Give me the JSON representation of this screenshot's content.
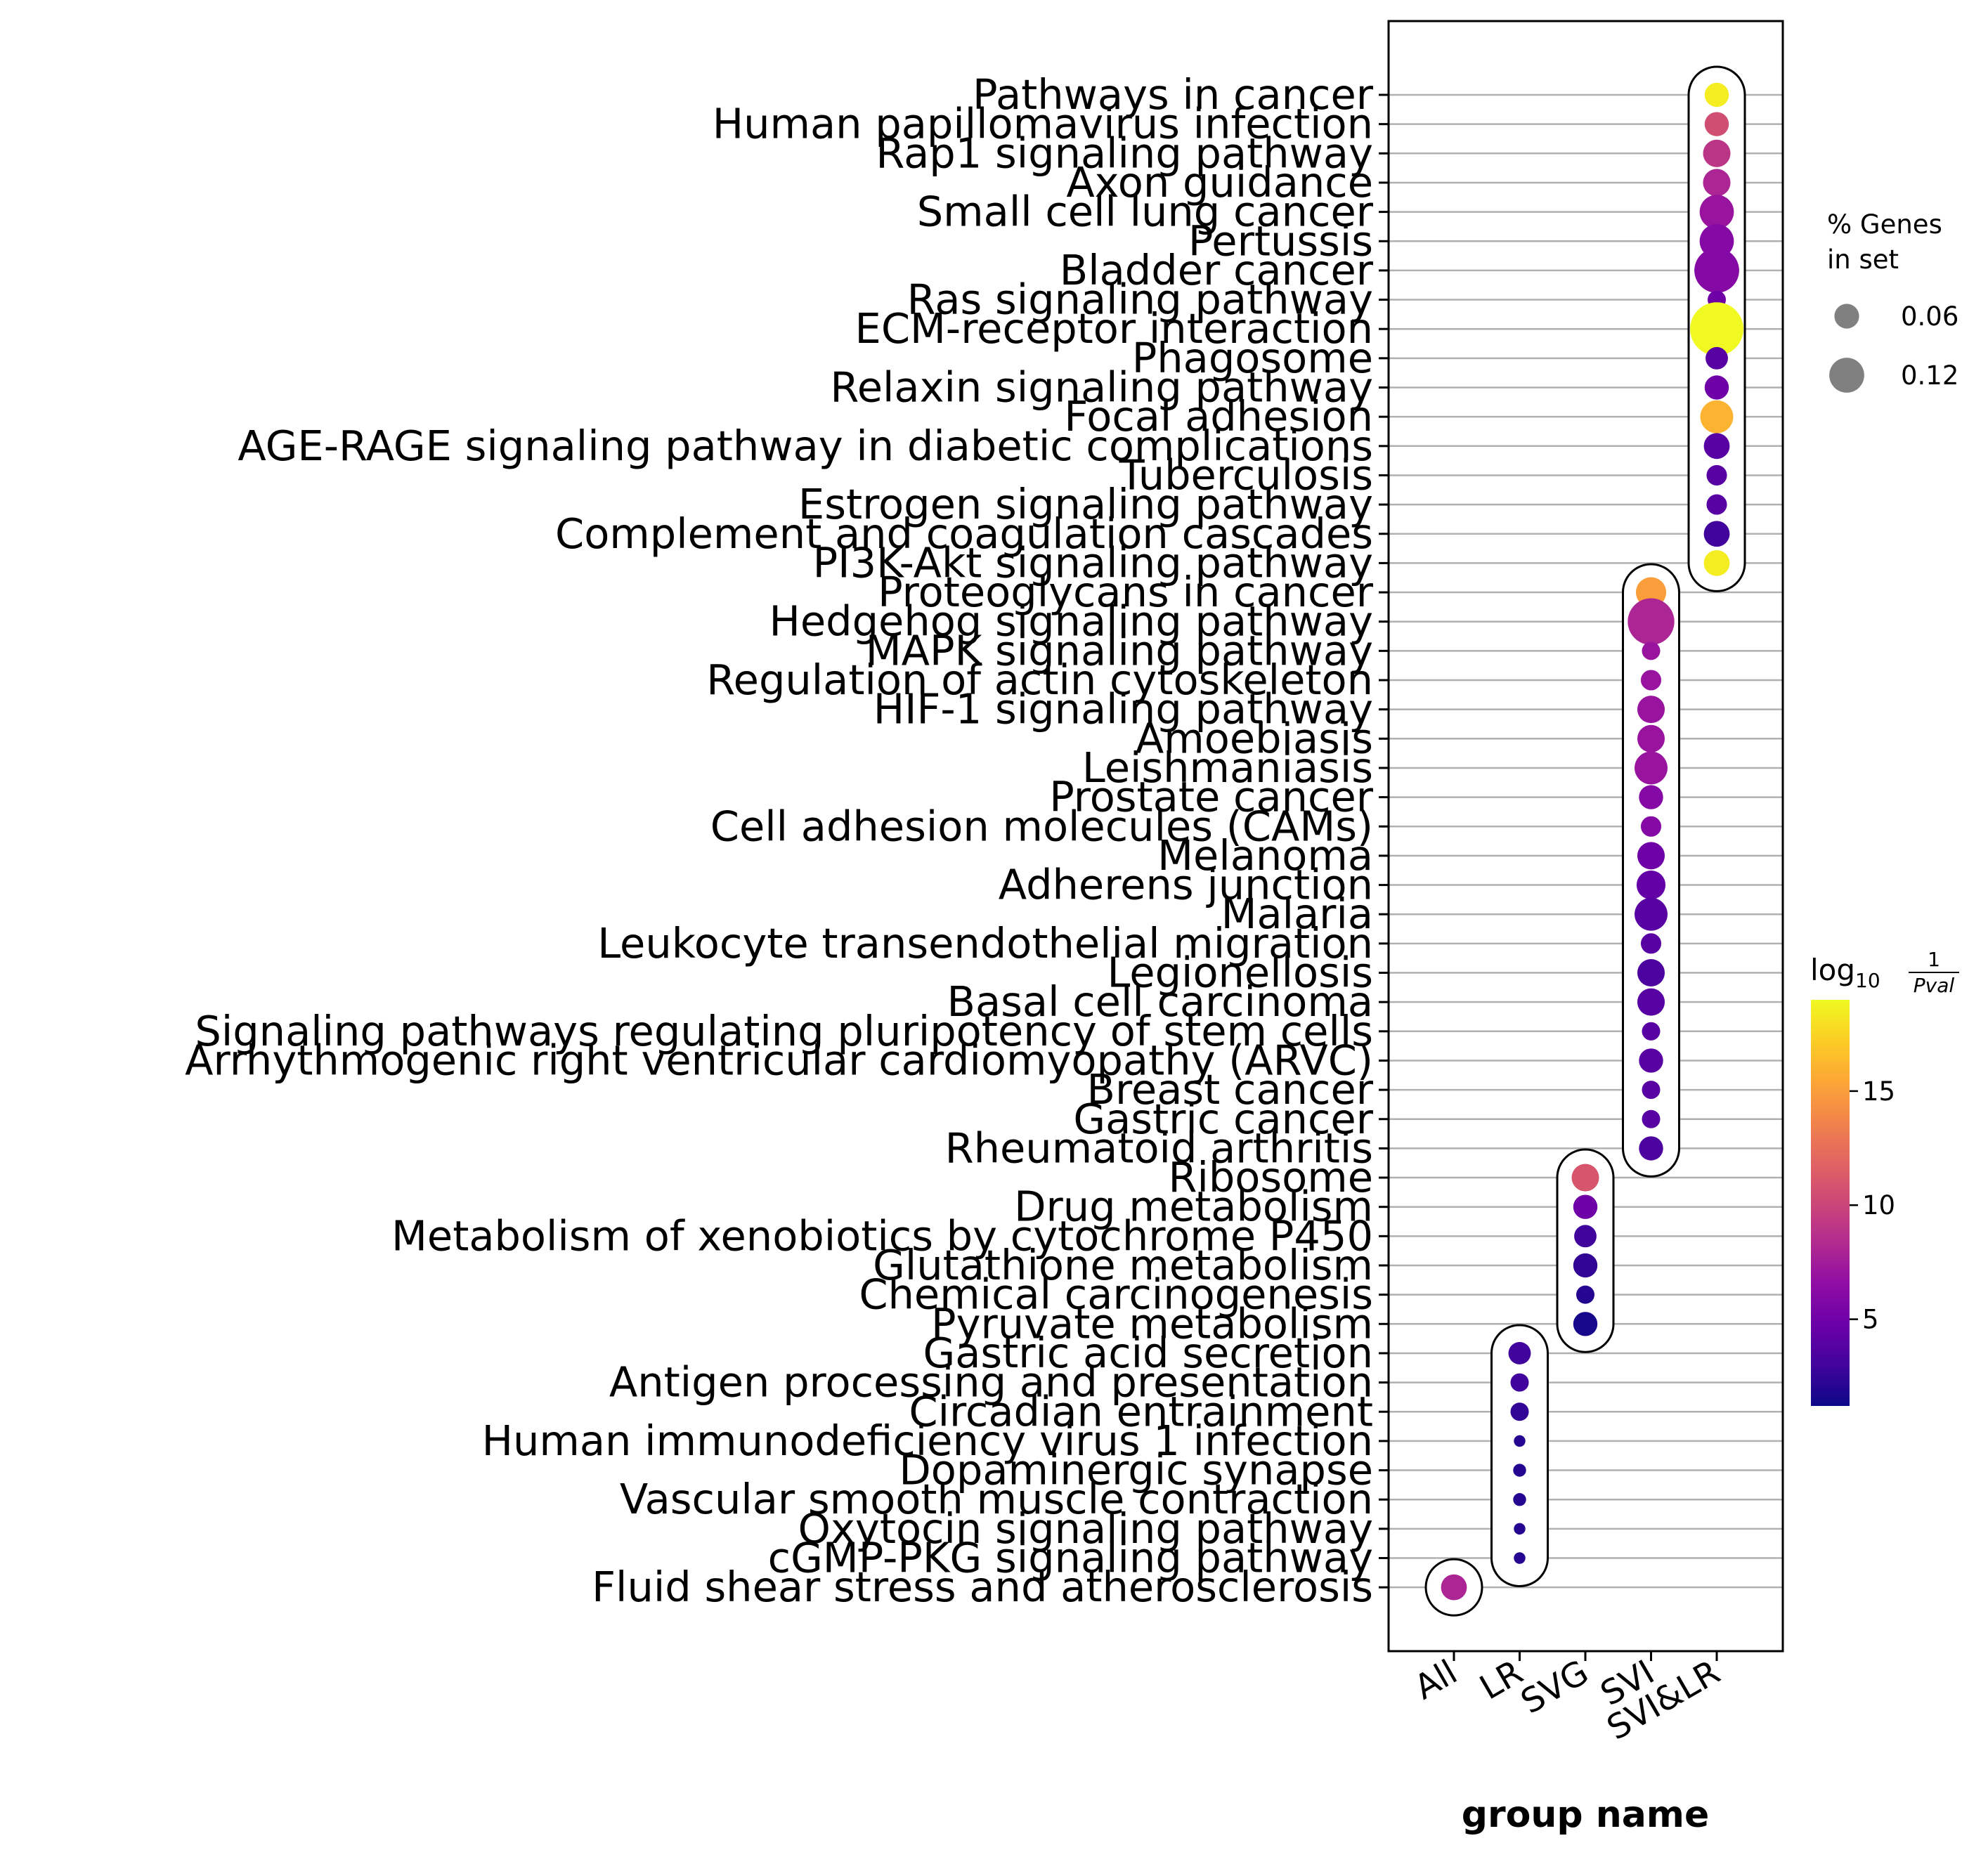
{
  "chart_data": {
    "type": "scatter",
    "xlabel": "group name",
    "x_categories": [
      "All",
      "LR",
      "SVG",
      "SVI",
      "SVI&LR"
    ],
    "terms": [
      "Pathways in cancer",
      "Human papillomavirus infection",
      "Rap1 signaling pathway",
      "Axon guidance",
      "Small cell lung cancer",
      "Pertussis",
      "Bladder cancer",
      "Ras signaling pathway",
      "ECM-receptor interaction",
      "Phagosome",
      "Relaxin signaling pathway",
      "Focal adhesion",
      "AGE-RAGE signaling pathway in diabetic complications",
      "Tuberculosis",
      "Estrogen signaling pathway",
      "Complement and coagulation cascades",
      "PI3K-Akt signaling pathway",
      "Proteoglycans in cancer",
      "Hedgehog signaling pathway",
      "MAPK signaling pathway",
      "Regulation of actin cytoskeleton",
      "HIF-1 signaling pathway",
      "Amoebiasis",
      "Leishmaniasis",
      "Prostate cancer",
      "Cell adhesion molecules (CAMs)",
      "Melanoma",
      "Adherens junction",
      "Malaria",
      "Leukocyte transendothelial migration",
      "Legionellosis",
      "Basal cell carcinoma",
      "Signaling pathways regulating pluripotency of stem cells",
      "Arrhythmogenic right ventricular cardiomyopathy (ARVC)",
      "Breast cancer",
      "Gastric cancer",
      "Rheumatoid arthritis",
      "Ribosome",
      "Drug metabolism",
      "Metabolism of xenobiotics by cytochrome P450",
      "Glutathione metabolism",
      "Chemical carcinogenesis",
      "Pyruvate metabolism",
      "Gastric acid secretion",
      "Antigen processing and presentation",
      "Circadian entrainment",
      "Human immunodeficiency virus 1 infection",
      "Dopaminergic synapse",
      "Vascular smooth muscle contraction",
      "Oxytocin signaling pathway",
      "cGMP-PKG signaling pathway",
      "Fluid shear stress and atherosclerosis"
    ],
    "points": [
      {
        "term": "Pathways in cancer",
        "group": "SVI&LR",
        "pct_genes": 0.035,
        "neglog10p": 18.5
      },
      {
        "term": "Human papillomavirus infection",
        "group": "SVI&LR",
        "pct_genes": 0.035,
        "neglog10p": 10.5
      },
      {
        "term": "Rap1 signaling pathway",
        "group": "SVI&LR",
        "pct_genes": 0.045,
        "neglog10p": 9
      },
      {
        "term": "Axon guidance",
        "group": "SVI&LR",
        "pct_genes": 0.045,
        "neglog10p": 8
      },
      {
        "term": "Small cell lung cancer",
        "group": "SVI&LR",
        "pct_genes": 0.07,
        "neglog10p": 7
      },
      {
        "term": "Pertussis",
        "group": "SVI&LR",
        "pct_genes": 0.07,
        "neglog10p": 6
      },
      {
        "term": "Bladder cancer",
        "group": "SVI&LR",
        "pct_genes": 0.12,
        "neglog10p": 6
      },
      {
        "term": "Ras signaling pathway",
        "group": "SVI&LR",
        "pct_genes": 0.02,
        "neglog10p": 5
      },
      {
        "term": "ECM-receptor interaction",
        "group": "SVI&LR",
        "pct_genes": 0.17,
        "neglog10p": 19
      },
      {
        "term": "Phagosome",
        "group": "SVI&LR",
        "pct_genes": 0.03,
        "neglog10p": 4
      },
      {
        "term": "Relaxin signaling pathway",
        "group": "SVI&LR",
        "pct_genes": 0.035,
        "neglog10p": 5
      },
      {
        "term": "Focal adhesion",
        "group": "SVI&LR",
        "pct_genes": 0.065,
        "neglog10p": 16
      },
      {
        "term": "AGE-RAGE signaling pathway in diabetic complications",
        "group": "SVI&LR",
        "pct_genes": 0.04,
        "neglog10p": 4
      },
      {
        "term": "Tuberculosis",
        "group": "SVI&LR",
        "pct_genes": 0.025,
        "neglog10p": 4
      },
      {
        "term": "Estrogen signaling pathway",
        "group": "SVI&LR",
        "pct_genes": 0.025,
        "neglog10p": 4
      },
      {
        "term": "Complement and coagulation cascades",
        "group": "SVI&LR",
        "pct_genes": 0.04,
        "neglog10p": 3
      },
      {
        "term": "PI3K-Akt signaling pathway",
        "group": "SVI&LR",
        "pct_genes": 0.04,
        "neglog10p": 18.5
      },
      {
        "term": "Proteoglycans in cancer",
        "group": "SVI",
        "pct_genes": 0.055,
        "neglog10p": 15
      },
      {
        "term": "Hedgehog signaling pathway",
        "group": "SVI",
        "pct_genes": 0.13,
        "neglog10p": 8
      },
      {
        "term": "MAPK signaling pathway",
        "group": "SVI",
        "pct_genes": 0.02,
        "neglog10p": 7
      },
      {
        "term": "Regulation of actin cytoskeleton",
        "group": "SVI",
        "pct_genes": 0.025,
        "neglog10p": 7
      },
      {
        "term": "HIF-1 signaling pathway",
        "group": "SVI",
        "pct_genes": 0.045,
        "neglog10p": 7
      },
      {
        "term": "Amoebiasis",
        "group": "SVI",
        "pct_genes": 0.045,
        "neglog10p": 7
      },
      {
        "term": "Leishmaniasis",
        "group": "SVI",
        "pct_genes": 0.065,
        "neglog10p": 7
      },
      {
        "term": "Prostate cancer",
        "group": "SVI",
        "pct_genes": 0.035,
        "neglog10p": 6
      },
      {
        "term": "Cell adhesion molecules (CAMs)",
        "group": "SVI",
        "pct_genes": 0.025,
        "neglog10p": 6
      },
      {
        "term": "Melanoma",
        "group": "SVI",
        "pct_genes": 0.045,
        "neglog10p": 5
      },
      {
        "term": "Adherens junction",
        "group": "SVI",
        "pct_genes": 0.05,
        "neglog10p": 4.5
      },
      {
        "term": "Malaria",
        "group": "SVI",
        "pct_genes": 0.065,
        "neglog10p": 4
      },
      {
        "term": "Leukocyte transendothelial migration",
        "group": "SVI",
        "pct_genes": 0.025,
        "neglog10p": 4
      },
      {
        "term": "Legionellosis",
        "group": "SVI",
        "pct_genes": 0.045,
        "neglog10p": 3.5
      },
      {
        "term": "Basal cell carcinoma",
        "group": "SVI",
        "pct_genes": 0.045,
        "neglog10p": 4
      },
      {
        "term": "Signaling pathways regulating pluripotency of stem cells",
        "group": "SVI",
        "pct_genes": 0.02,
        "neglog10p": 4
      },
      {
        "term": "Arrhythmogenic right ventricular cardiomyopathy (ARVC)",
        "group": "SVI",
        "pct_genes": 0.035,
        "neglog10p": 4
      },
      {
        "term": "Breast cancer",
        "group": "SVI",
        "pct_genes": 0.02,
        "neglog10p": 4
      },
      {
        "term": "Gastric cancer",
        "group": "SVI",
        "pct_genes": 0.02,
        "neglog10p": 4
      },
      {
        "term": "Rheumatoid arthritis",
        "group": "SVI",
        "pct_genes": 0.035,
        "neglog10p": 3.5
      },
      {
        "term": "Ribosome",
        "group": "SVG",
        "pct_genes": 0.045,
        "neglog10p": 11
      },
      {
        "term": "Drug metabolism",
        "group": "SVG",
        "pct_genes": 0.035,
        "neglog10p": 5
      },
      {
        "term": "Metabolism of xenobiotics by cytochrome P450",
        "group": "SVG",
        "pct_genes": 0.03,
        "neglog10p": 3
      },
      {
        "term": "Glutathione metabolism",
        "group": "SVG",
        "pct_genes": 0.035,
        "neglog10p": 2.5
      },
      {
        "term": "Chemical carcinogenesis",
        "group": "SVG",
        "pct_genes": 0.02,
        "neglog10p": 2
      },
      {
        "term": "Pyruvate metabolism",
        "group": "SVG",
        "pct_genes": 0.035,
        "neglog10p": 1.5
      },
      {
        "term": "Gastric acid secretion",
        "group": "LR",
        "pct_genes": 0.03,
        "neglog10p": 3
      },
      {
        "term": "Antigen processing and presentation",
        "group": "LR",
        "pct_genes": 0.02,
        "neglog10p": 3
      },
      {
        "term": "Circadian entrainment",
        "group": "LR",
        "pct_genes": 0.02,
        "neglog10p": 2.5
      },
      {
        "term": "Human immunodeficiency virus 1 infection",
        "group": "LR",
        "pct_genes": 0.008,
        "neglog10p": 2
      },
      {
        "term": "Dopaminergic synapse",
        "group": "LR",
        "pct_genes": 0.01,
        "neglog10p": 2
      },
      {
        "term": "Vascular smooth muscle contraction",
        "group": "LR",
        "pct_genes": 0.01,
        "neglog10p": 2
      },
      {
        "term": "Oxytocin signaling pathway",
        "group": "LR",
        "pct_genes": 0.008,
        "neglog10p": 2
      },
      {
        "term": "cGMP-PKG signaling pathway",
        "group": "LR",
        "pct_genes": 0.008,
        "neglog10p": 2
      },
      {
        "term": "Fluid shear stress and atherosclerosis",
        "group": "All",
        "pct_genes": 0.04,
        "neglog10p": 8
      }
    ],
    "size_legend": {
      "title_line1": "% Genes",
      "title_line2": "in set",
      "entries": [
        {
          "value": 0.06,
          "label": "0.06"
        },
        {
          "value": 0.12,
          "label": "0.12"
        }
      ]
    },
    "colorbar": {
      "label_prefix": "log",
      "label_sub": "10",
      "label_num": "1",
      "label_den": "Pval",
      "colormap": "plasma",
      "range": [
        1.2,
        19
      ],
      "ticks": [
        5,
        10,
        15
      ]
    },
    "grid": true
  }
}
